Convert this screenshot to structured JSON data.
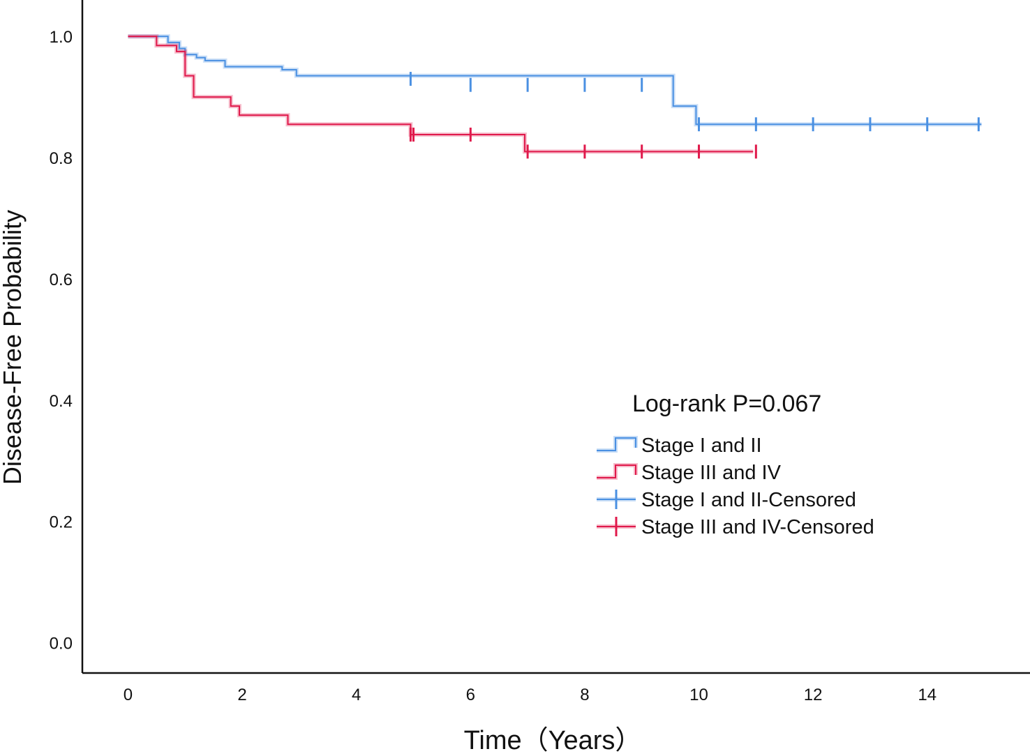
{
  "chart_data": {
    "type": "line",
    "subtype": "kaplan-meier",
    "xlabel": "Time（Years）",
    "ylabel": "Disease-Free Probability",
    "xlim": [
      -0.8,
      15.8
    ],
    "ylim": [
      -0.05,
      1.06
    ],
    "x_ticks": [
      0,
      2,
      4,
      6,
      8,
      10,
      12,
      14
    ],
    "x_tick_labels": [
      "0",
      "2",
      "4",
      "6",
      "8",
      "10",
      "12",
      "14"
    ],
    "y_ticks": [
      0.0,
      0.2,
      0.4,
      0.6,
      0.8,
      1.0
    ],
    "y_tick_labels": [
      "0.0",
      "0.2",
      "0.4",
      "0.6",
      "0.8",
      "1.0"
    ],
    "annotation": "Log-rank P=0.067",
    "legend_position": "center-right",
    "series": [
      {
        "name": "Stage I and II",
        "color": "#4a90e2",
        "steps": [
          [
            0,
            1.0
          ],
          [
            0.7,
            0.99
          ],
          [
            0.9,
            0.98
          ],
          [
            1.0,
            0.97
          ],
          [
            1.2,
            0.965
          ],
          [
            1.35,
            0.96
          ],
          [
            1.7,
            0.95
          ],
          [
            2.7,
            0.945
          ],
          [
            2.95,
            0.935
          ],
          [
            9.55,
            0.885
          ],
          [
            9.95,
            0.855
          ],
          [
            14.95,
            0.855
          ]
        ],
        "censored": [
          [
            4.95,
            0.93
          ],
          [
            6.0,
            0.92
          ],
          [
            7.0,
            0.92
          ],
          [
            8.0,
            0.92
          ],
          [
            9.0,
            0.92
          ],
          [
            10.0,
            0.855
          ],
          [
            11.0,
            0.855
          ],
          [
            12.0,
            0.855
          ],
          [
            13.0,
            0.855
          ],
          [
            14.0,
            0.855
          ],
          [
            14.9,
            0.855
          ]
        ]
      },
      {
        "name": "Stage III and IV",
        "color": "#e0194b",
        "steps": [
          [
            0,
            1.0
          ],
          [
            0.5,
            0.985
          ],
          [
            0.85,
            0.975
          ],
          [
            1.0,
            0.935
          ],
          [
            1.15,
            0.9
          ],
          [
            1.8,
            0.885
          ],
          [
            1.95,
            0.87
          ],
          [
            2.8,
            0.855
          ],
          [
            4.95,
            0.838
          ],
          [
            6.95,
            0.81
          ],
          [
            10.95,
            0.81
          ]
        ],
        "censored": [
          [
            4.95,
            0.838
          ],
          [
            5.0,
            0.838
          ],
          [
            6.0,
            0.838
          ],
          [
            7.0,
            0.81
          ],
          [
            8.0,
            0.81
          ],
          [
            9.0,
            0.81
          ],
          [
            10.0,
            0.81
          ],
          [
            11.0,
            0.81
          ]
        ]
      }
    ],
    "legend": [
      {
        "label": "Stage I and II",
        "kind": "step",
        "color": "#4a90e2"
      },
      {
        "label": "Stage III and IV",
        "kind": "step",
        "color": "#e0194b"
      },
      {
        "label": "Stage I and II-Censored",
        "kind": "censor",
        "color": "#4a90e2"
      },
      {
        "label": "Stage III and IV-Censored",
        "kind": "censor",
        "color": "#e0194b"
      }
    ]
  }
}
